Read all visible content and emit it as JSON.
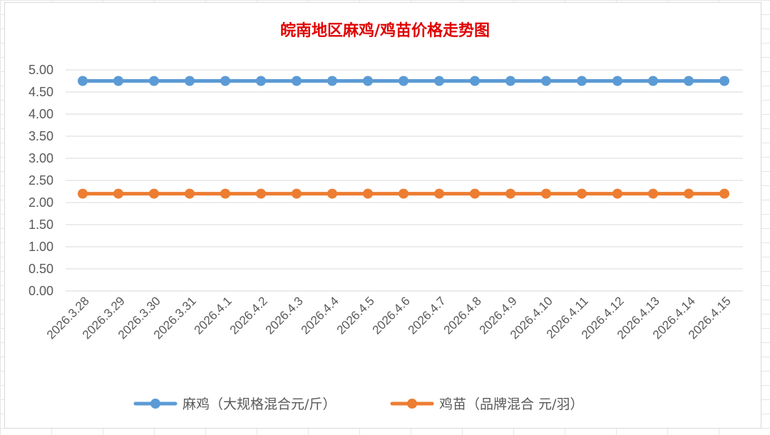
{
  "chart_data": {
    "type": "line",
    "title": "皖南地区麻鸡/鸡苗价格走势图",
    "categories": [
      "2026.3.28",
      "2026.3.29",
      "2026.3.30",
      "2026.3.31",
      "2026.4.1",
      "2026.4.2",
      "2026.4.3",
      "2026.4.4",
      "2026.4.5",
      "2026.4.6",
      "2026.4.7",
      "2026.4.8",
      "2026.4.9",
      "2026.4.10",
      "2026.4.11",
      "2026.4.12",
      "2026.4.13",
      "2026.4.14",
      "2026.4.15"
    ],
    "series": [
      {
        "name": "麻鸡（大规格混合元/斤）",
        "color": "#5b9bd5",
        "values": [
          4.75,
          4.75,
          4.75,
          4.75,
          4.75,
          4.75,
          4.75,
          4.75,
          4.75,
          4.75,
          4.75,
          4.75,
          4.75,
          4.75,
          4.75,
          4.75,
          4.75,
          4.75,
          4.75
        ]
      },
      {
        "name": "鸡苗（品牌混合 元/羽）",
        "color": "#ed7d31",
        "values": [
          2.2,
          2.2,
          2.2,
          2.2,
          2.2,
          2.2,
          2.2,
          2.2,
          2.2,
          2.2,
          2.2,
          2.2,
          2.2,
          2.2,
          2.2,
          2.2,
          2.2,
          2.2,
          2.2
        ]
      }
    ],
    "ylim": [
      0,
      5
    ],
    "ystep": 0.5,
    "ytick_labels": [
      "0.00",
      "0.50",
      "1.00",
      "1.50",
      "2.00",
      "2.50",
      "3.00",
      "3.50",
      "4.00",
      "4.50",
      "5.00"
    ],
    "xlabel": "",
    "ylabel": "",
    "grid": true,
    "legend_position": "bottom",
    "title_color": "#e00000"
  }
}
